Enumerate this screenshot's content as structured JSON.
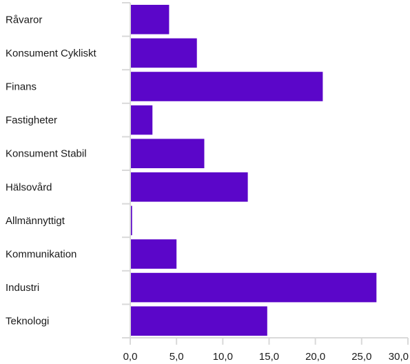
{
  "chart_data": {
    "type": "bar",
    "orientation": "horizontal",
    "categories": [
      "Råvaror",
      "Konsument Cykliskt",
      "Finans",
      "Fastigheter",
      "Konsument Stabil",
      "Hälsovård",
      "Allmännyttigt",
      "Kommunikation",
      "Industri",
      "Teknologi"
    ],
    "values": [
      4.2,
      7.2,
      20.8,
      2.4,
      8.0,
      12.7,
      0.2,
      5.0,
      26.6,
      14.8
    ],
    "xlim": [
      0,
      30
    ],
    "xticks": [
      0,
      5,
      10,
      15,
      20,
      25,
      30
    ],
    "xtick_labels": [
      "0,0",
      "5,0",
      "10,0",
      "15,0",
      "20,0",
      "25,0",
      "30,0"
    ],
    "title": "",
    "xlabel": "",
    "ylabel": "",
    "bar_color": "#5b06c9",
    "grid": false,
    "legend": "none"
  }
}
